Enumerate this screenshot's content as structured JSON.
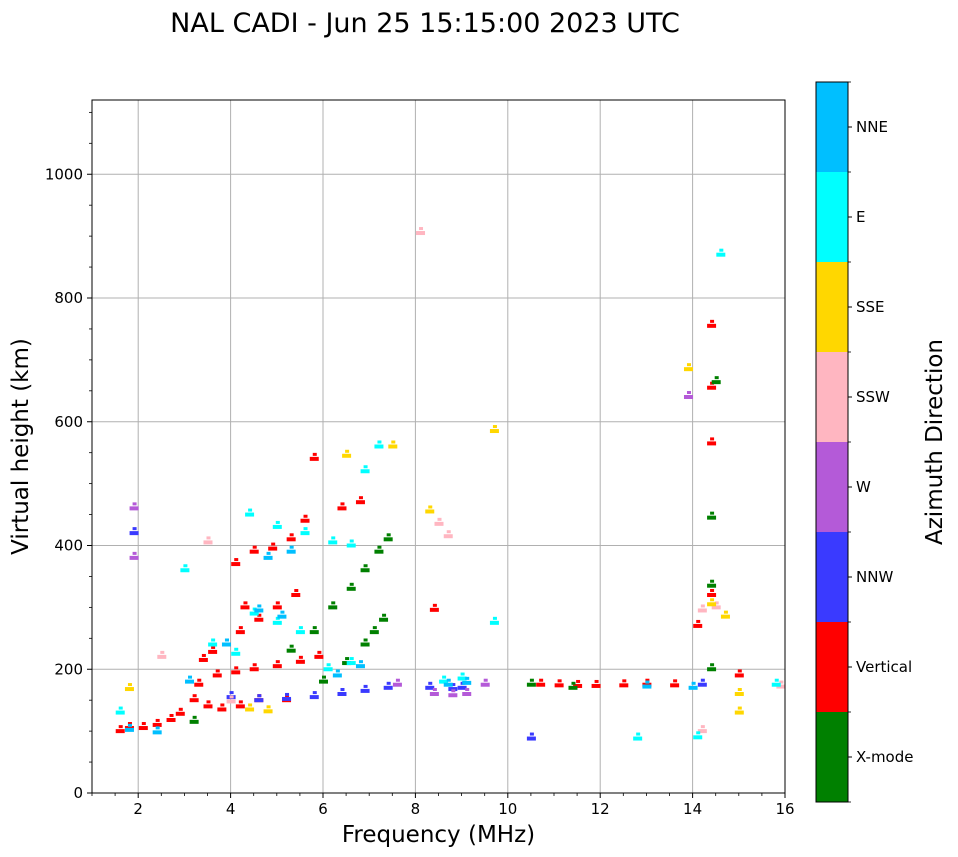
{
  "chart_data": {
    "type": "scatter",
    "title": "NAL CADI - Jun 25 15:15:00 2023 UTC",
    "xlabel": "Frequency (MHz)",
    "ylabel": "Virtual height (km)",
    "xlim": [
      1,
      16
    ],
    "ylim": [
      0,
      1120
    ],
    "xticks": [
      "2",
      "4",
      "6",
      "8",
      "10",
      "12",
      "14",
      "16"
    ],
    "yticks": [
      "0",
      "200",
      "400",
      "600",
      "800",
      "1000"
    ],
    "grid": true,
    "colorbar": {
      "title": "Azimuth Direction",
      "categories": [
        {
          "label": "X-mode",
          "color": "#008000"
        },
        {
          "label": "Vertical",
          "color": "#ff0000"
        },
        {
          "label": "NNW",
          "color": "#3a3aff"
        },
        {
          "label": "W",
          "color": "#b45ad8"
        },
        {
          "label": "SSW",
          "color": "#ffb6c1"
        },
        {
          "label": "SSE",
          "color": "#ffd700"
        },
        {
          "label": "E",
          "color": "#00ffff"
        },
        {
          "label": "NNE",
          "color": "#00bfff"
        }
      ]
    },
    "series": [
      {
        "name": "Vertical",
        "color": "#ff0000",
        "points": [
          [
            1.6,
            100
          ],
          [
            1.8,
            105
          ],
          [
            2.1,
            105
          ],
          [
            2.4,
            110
          ],
          [
            2.7,
            118
          ],
          [
            2.9,
            128
          ],
          [
            3.2,
            150
          ],
          [
            3.5,
            140
          ],
          [
            3.8,
            135
          ],
          [
            4.2,
            140
          ],
          [
            4.6,
            150
          ],
          [
            5.2,
            150
          ],
          [
            3.3,
            175
          ],
          [
            3.7,
            190
          ],
          [
            4.1,
            195
          ],
          [
            4.5,
            200
          ],
          [
            5.0,
            205
          ],
          [
            5.5,
            212
          ],
          [
            5.9,
            220
          ],
          [
            3.4,
            215
          ],
          [
            3.6,
            228
          ],
          [
            3.9,
            240
          ],
          [
            4.2,
            260
          ],
          [
            4.6,
            280
          ],
          [
            5.0,
            300
          ],
          [
            5.4,
            320
          ],
          [
            4.1,
            370
          ],
          [
            4.5,
            390
          ],
          [
            4.9,
            395
          ],
          [
            5.3,
            410
          ],
          [
            5.6,
            440
          ],
          [
            6.4,
            460
          ],
          [
            6.8,
            470
          ],
          [
            8.4,
            296
          ],
          [
            10.7,
            175
          ],
          [
            11.1,
            174
          ],
          [
            11.5,
            173
          ],
          [
            11.9,
            173
          ],
          [
            12.5,
            174
          ],
          [
            13.0,
            175
          ],
          [
            13.6,
            174
          ],
          [
            14.4,
            755
          ],
          [
            14.4,
            655
          ],
          [
            14.4,
            565
          ],
          [
            14.4,
            320
          ],
          [
            14.1,
            270
          ],
          [
            15.0,
            190
          ],
          [
            5.8,
            540
          ],
          [
            4.3,
            300
          ]
        ]
      },
      {
        "name": "X-mode",
        "color": "#008000",
        "points": [
          [
            5.3,
            230
          ],
          [
            5.8,
            260
          ],
          [
            6.2,
            300
          ],
          [
            6.6,
            330
          ],
          [
            6.9,
            360
          ],
          [
            7.2,
            390
          ],
          [
            7.4,
            410
          ],
          [
            6.0,
            180
          ],
          [
            6.5,
            210
          ],
          [
            6.9,
            240
          ],
          [
            7.1,
            260
          ],
          [
            7.3,
            280
          ],
          [
            14.4,
            445
          ],
          [
            14.4,
            335
          ],
          [
            14.4,
            200
          ],
          [
            10.5,
            175
          ],
          [
            11.4,
            170
          ],
          [
            14.5,
            664
          ],
          [
            3.2,
            115
          ]
        ]
      },
      {
        "name": "NNW",
        "color": "#3a3aff",
        "points": [
          [
            4.0,
            155
          ],
          [
            4.6,
            150
          ],
          [
            5.2,
            152
          ],
          [
            5.8,
            155
          ],
          [
            6.4,
            160
          ],
          [
            6.9,
            165
          ],
          [
            7.4,
            170
          ],
          [
            8.3,
            170
          ],
          [
            8.8,
            168
          ],
          [
            9.0,
            170
          ],
          [
            10.5,
            88
          ],
          [
            14.2,
            175
          ],
          [
            1.9,
            420
          ]
        ]
      },
      {
        "name": "W",
        "color": "#b45ad8",
        "points": [
          [
            1.9,
            460
          ],
          [
            1.9,
            380
          ],
          [
            8.4,
            160
          ],
          [
            8.8,
            158
          ],
          [
            9.1,
            160
          ],
          [
            13.9,
            640
          ],
          [
            9.5,
            175
          ],
          [
            7.6,
            175
          ]
        ]
      },
      {
        "name": "SSW",
        "color": "#ffb6c1",
        "points": [
          [
            8.1,
            905
          ],
          [
            8.5,
            435
          ],
          [
            8.7,
            415
          ],
          [
            14.2,
            295
          ],
          [
            14.5,
            300
          ],
          [
            14.2,
            100
          ],
          [
            15.9,
            172
          ],
          [
            3.5,
            405
          ],
          [
            2.5,
            220
          ],
          [
            4.0,
            148
          ]
        ]
      },
      {
        "name": "SSE",
        "color": "#ffd700",
        "points": [
          [
            4.4,
            135
          ],
          [
            4.8,
            132
          ],
          [
            6.5,
            545
          ],
          [
            7.5,
            560
          ],
          [
            8.3,
            455
          ],
          [
            9.7,
            585
          ],
          [
            13.9,
            685
          ],
          [
            14.7,
            285
          ],
          [
            14.4,
            305
          ],
          [
            15.0,
            130
          ],
          [
            15.0,
            160
          ],
          [
            1.8,
            168
          ]
        ]
      },
      {
        "name": "E",
        "color": "#00ffff",
        "points": [
          [
            4.4,
            450
          ],
          [
            5.0,
            430
          ],
          [
            5.6,
            420
          ],
          [
            6.2,
            405
          ],
          [
            6.6,
            400
          ],
          [
            6.9,
            520
          ],
          [
            7.2,
            560
          ],
          [
            4.5,
            290
          ],
          [
            5.0,
            275
          ],
          [
            5.5,
            260
          ],
          [
            3.6,
            240
          ],
          [
            4.1,
            225
          ],
          [
            6.1,
            200
          ],
          [
            6.6,
            210
          ],
          [
            8.6,
            180
          ],
          [
            9.0,
            185
          ],
          [
            9.7,
            275
          ],
          [
            12.8,
            88
          ],
          [
            14.6,
            870
          ],
          [
            14.1,
            90
          ],
          [
            15.8,
            175
          ],
          [
            1.6,
            130
          ],
          [
            3.0,
            360
          ]
        ]
      },
      {
        "name": "NNE",
        "color": "#00bfff",
        "points": [
          [
            4.8,
            380
          ],
          [
            5.3,
            390
          ],
          [
            4.6,
            295
          ],
          [
            5.1,
            285
          ],
          [
            3.9,
            240
          ],
          [
            6.3,
            190
          ],
          [
            6.8,
            205
          ],
          [
            8.7,
            175
          ],
          [
            9.1,
            178
          ],
          [
            13.0,
            172
          ],
          [
            14.0,
            170
          ],
          [
            1.8,
            102
          ],
          [
            2.4,
            98
          ],
          [
            3.1,
            180
          ]
        ]
      }
    ]
  }
}
